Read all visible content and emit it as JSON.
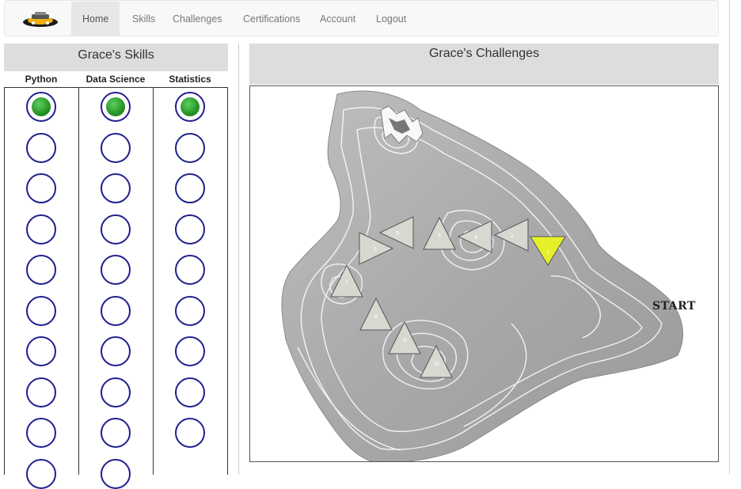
{
  "nav": {
    "items": [
      {
        "label": "Home",
        "active": true
      },
      {
        "label": "Skills",
        "active": false
      },
      {
        "label": "Challenges",
        "active": false
      },
      {
        "label": "Certifications",
        "active": false
      },
      {
        "label": "Account",
        "active": false
      },
      {
        "label": "Logout",
        "active": false
      }
    ]
  },
  "skills": {
    "title": "Grace's Skills",
    "columns": [
      {
        "name": "Python",
        "completed": 1,
        "total": 10
      },
      {
        "name": "Data Science",
        "completed": 1,
        "total": 10
      },
      {
        "name": "Statistics",
        "completed": 1,
        "total": 9
      }
    ]
  },
  "challenges": {
    "title": "Grace's Challenges",
    "start_label": "START",
    "markers": [
      {
        "label": "1",
        "state": "current",
        "direction": "down"
      },
      {
        "label": "2",
        "state": "locked",
        "direction": "left"
      },
      {
        "label": "3",
        "state": "locked",
        "direction": "up"
      },
      {
        "label": "4",
        "state": "locked",
        "direction": "left"
      },
      {
        "label": "5",
        "state": "locked",
        "direction": "left"
      },
      {
        "label": "6",
        "state": "locked",
        "direction": "right"
      },
      {
        "label": "7",
        "state": "locked",
        "direction": "up"
      },
      {
        "label": "8",
        "state": "locked",
        "direction": "up"
      },
      {
        "label": "9",
        "state": "locked",
        "direction": "up"
      },
      {
        "label": "10",
        "state": "locked",
        "direction": "up"
      }
    ]
  },
  "colors": {
    "completed": "#2aa52a",
    "current": "#e6f02a",
    "locked": "#d8d8d0",
    "ring": "#1f1f8f"
  }
}
